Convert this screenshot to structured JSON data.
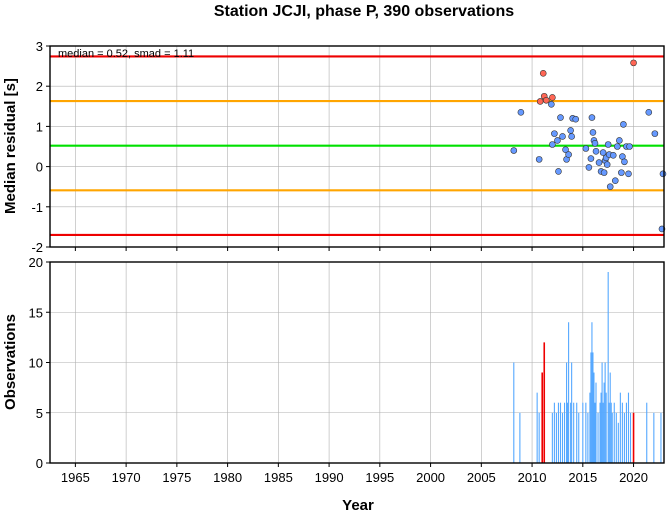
{
  "chart_data": {
    "title": "Station JCJI, phase P, 390 observations",
    "xlabel": "Year",
    "xlim": [
      1962.5,
      2023.0
    ],
    "x_ticks": [
      1965,
      1970,
      1975,
      1980,
      1985,
      1990,
      1995,
      2000,
      2005,
      2010,
      2015,
      2020
    ],
    "panels": [
      {
        "type": "scatter",
        "ylabel": "Median residual [s]",
        "ylim": [
          -2,
          3
        ],
        "y_ticks": [
          -2,
          -1,
          0,
          1,
          2,
          3
        ],
        "grid": true,
        "annotation": "median = 0.52, smad = 1.11",
        "reference_lines": [
          {
            "name": "median",
            "value": 0.52,
            "color": "#00e000"
          },
          {
            "name": "median + 1 smad",
            "value": 1.63,
            "color": "#ffa500"
          },
          {
            "name": "median - 1 smad",
            "value": -0.59,
            "color": "#ffa500"
          },
          {
            "name": "median + 2 smad",
            "value": 2.74,
            "color": "#ee0000"
          },
          {
            "name": "median - 2 smad",
            "value": -1.7,
            "color": "#ee0000"
          }
        ],
        "series": [
          {
            "color": "#6699ff",
            "points": [
              [
                2008.2,
                0.4
              ],
              [
                2008.9,
                1.35
              ],
              [
                2010.7,
                0.18
              ],
              [
                2011.9,
                1.55
              ],
              [
                2012.0,
                0.55
              ],
              [
                2012.2,
                0.82
              ],
              [
                2012.5,
                0.65
              ],
              [
                2012.6,
                -0.12
              ],
              [
                2012.8,
                1.22
              ],
              [
                2013.0,
                0.75
              ],
              [
                2013.3,
                0.42
              ],
              [
                2013.4,
                0.18
              ],
              [
                2013.6,
                0.3
              ],
              [
                2013.8,
                0.9
              ],
              [
                2013.9,
                0.75
              ],
              [
                2014.0,
                1.2
              ],
              [
                2014.3,
                1.18
              ],
              [
                2015.3,
                0.45
              ],
              [
                2015.6,
                -0.02
              ],
              [
                2015.8,
                0.2
              ],
              [
                2015.9,
                1.22
              ],
              [
                2016.0,
                0.85
              ],
              [
                2016.1,
                0.65
              ],
              [
                2016.2,
                0.58
              ],
              [
                2016.3,
                0.38
              ],
              [
                2016.6,
                0.1
              ],
              [
                2016.8,
                -0.12
              ],
              [
                2017.0,
                0.35
              ],
              [
                2017.1,
                -0.15
              ],
              [
                2017.2,
                0.15
              ],
              [
                2017.3,
                0.22
              ],
              [
                2017.4,
                0.05
              ],
              [
                2017.5,
                0.55
              ],
              [
                2017.6,
                0.3
              ],
              [
                2017.7,
                -0.5
              ],
              [
                2018.0,
                0.28
              ],
              [
                2018.2,
                -0.35
              ],
              [
                2018.4,
                0.5
              ],
              [
                2018.6,
                0.65
              ],
              [
                2018.8,
                -0.15
              ],
              [
                2018.9,
                0.25
              ],
              [
                2019.0,
                1.05
              ],
              [
                2019.1,
                0.12
              ],
              [
                2019.3,
                0.5
              ],
              [
                2019.5,
                -0.18
              ],
              [
                2019.6,
                0.5
              ],
              [
                2021.5,
                1.35
              ],
              [
                2022.1,
                0.82
              ],
              [
                2022.9,
                -0.18
              ],
              [
                2022.8,
                -1.55
              ]
            ]
          },
          {
            "color": "#ff6655",
            "points": [
              [
                2010.8,
                1.62
              ],
              [
                2011.1,
                2.32
              ],
              [
                2011.2,
                1.75
              ],
              [
                2011.4,
                1.65
              ],
              [
                2012.0,
                1.72
              ],
              [
                2020.0,
                2.58
              ]
            ]
          }
        ]
      },
      {
        "type": "bar",
        "ylabel": "Observations",
        "ylim": [
          0,
          20
        ],
        "y_ticks": [
          0,
          5,
          10,
          15,
          20
        ],
        "grid": true,
        "series": [
          {
            "color": "#55a8ff",
            "bars": [
              [
                2008.2,
                10
              ],
              [
                2008.8,
                5
              ],
              [
                2010.5,
                7
              ],
              [
                2010.7,
                5
              ],
              [
                2012.0,
                5
              ],
              [
                2012.2,
                6
              ],
              [
                2012.4,
                5
              ],
              [
                2012.6,
                6
              ],
              [
                2012.8,
                6
              ],
              [
                2013.0,
                5
              ],
              [
                2013.2,
                6
              ],
              [
                2013.4,
                10
              ],
              [
                2013.5,
                6
              ],
              [
                2013.6,
                14
              ],
              [
                2013.8,
                6
              ],
              [
                2013.9,
                10
              ],
              [
                2014.1,
                6
              ],
              [
                2014.4,
                6
              ],
              [
                2014.6,
                5
              ],
              [
                2015.0,
                6
              ],
              [
                2015.3,
                6
              ],
              [
                2015.5,
                5
              ],
              [
                2015.7,
                7
              ],
              [
                2015.8,
                11
              ],
              [
                2015.9,
                14
              ],
              [
                2016.0,
                11
              ],
              [
                2016.1,
                9
              ],
              [
                2016.2,
                6
              ],
              [
                2016.3,
                8
              ],
              [
                2016.5,
                5
              ],
              [
                2016.7,
                6
              ],
              [
                2016.8,
                7
              ],
              [
                2016.9,
                10
              ],
              [
                2017.0,
                6
              ],
              [
                2017.1,
                8
              ],
              [
                2017.2,
                10
              ],
              [
                2017.3,
                7
              ],
              [
                2017.5,
                19
              ],
              [
                2017.6,
                6
              ],
              [
                2017.7,
                9
              ],
              [
                2017.8,
                6
              ],
              [
                2017.9,
                5
              ],
              [
                2018.1,
                6
              ],
              [
                2018.3,
                5
              ],
              [
                2018.5,
                4
              ],
              [
                2018.7,
                7
              ],
              [
                2018.9,
                6
              ],
              [
                2019.1,
                5
              ],
              [
                2019.3,
                6
              ],
              [
                2019.5,
                7
              ],
              [
                2019.7,
                5
              ],
              [
                2021.3,
                6
              ],
              [
                2022.0,
                5
              ],
              [
                2022.7,
                5
              ]
            ]
          },
          {
            "color": "#ee0000",
            "bars": [
              [
                2011.0,
                9
              ],
              [
                2011.2,
                12
              ],
              [
                2020.0,
                5
              ]
            ]
          }
        ]
      }
    ]
  }
}
